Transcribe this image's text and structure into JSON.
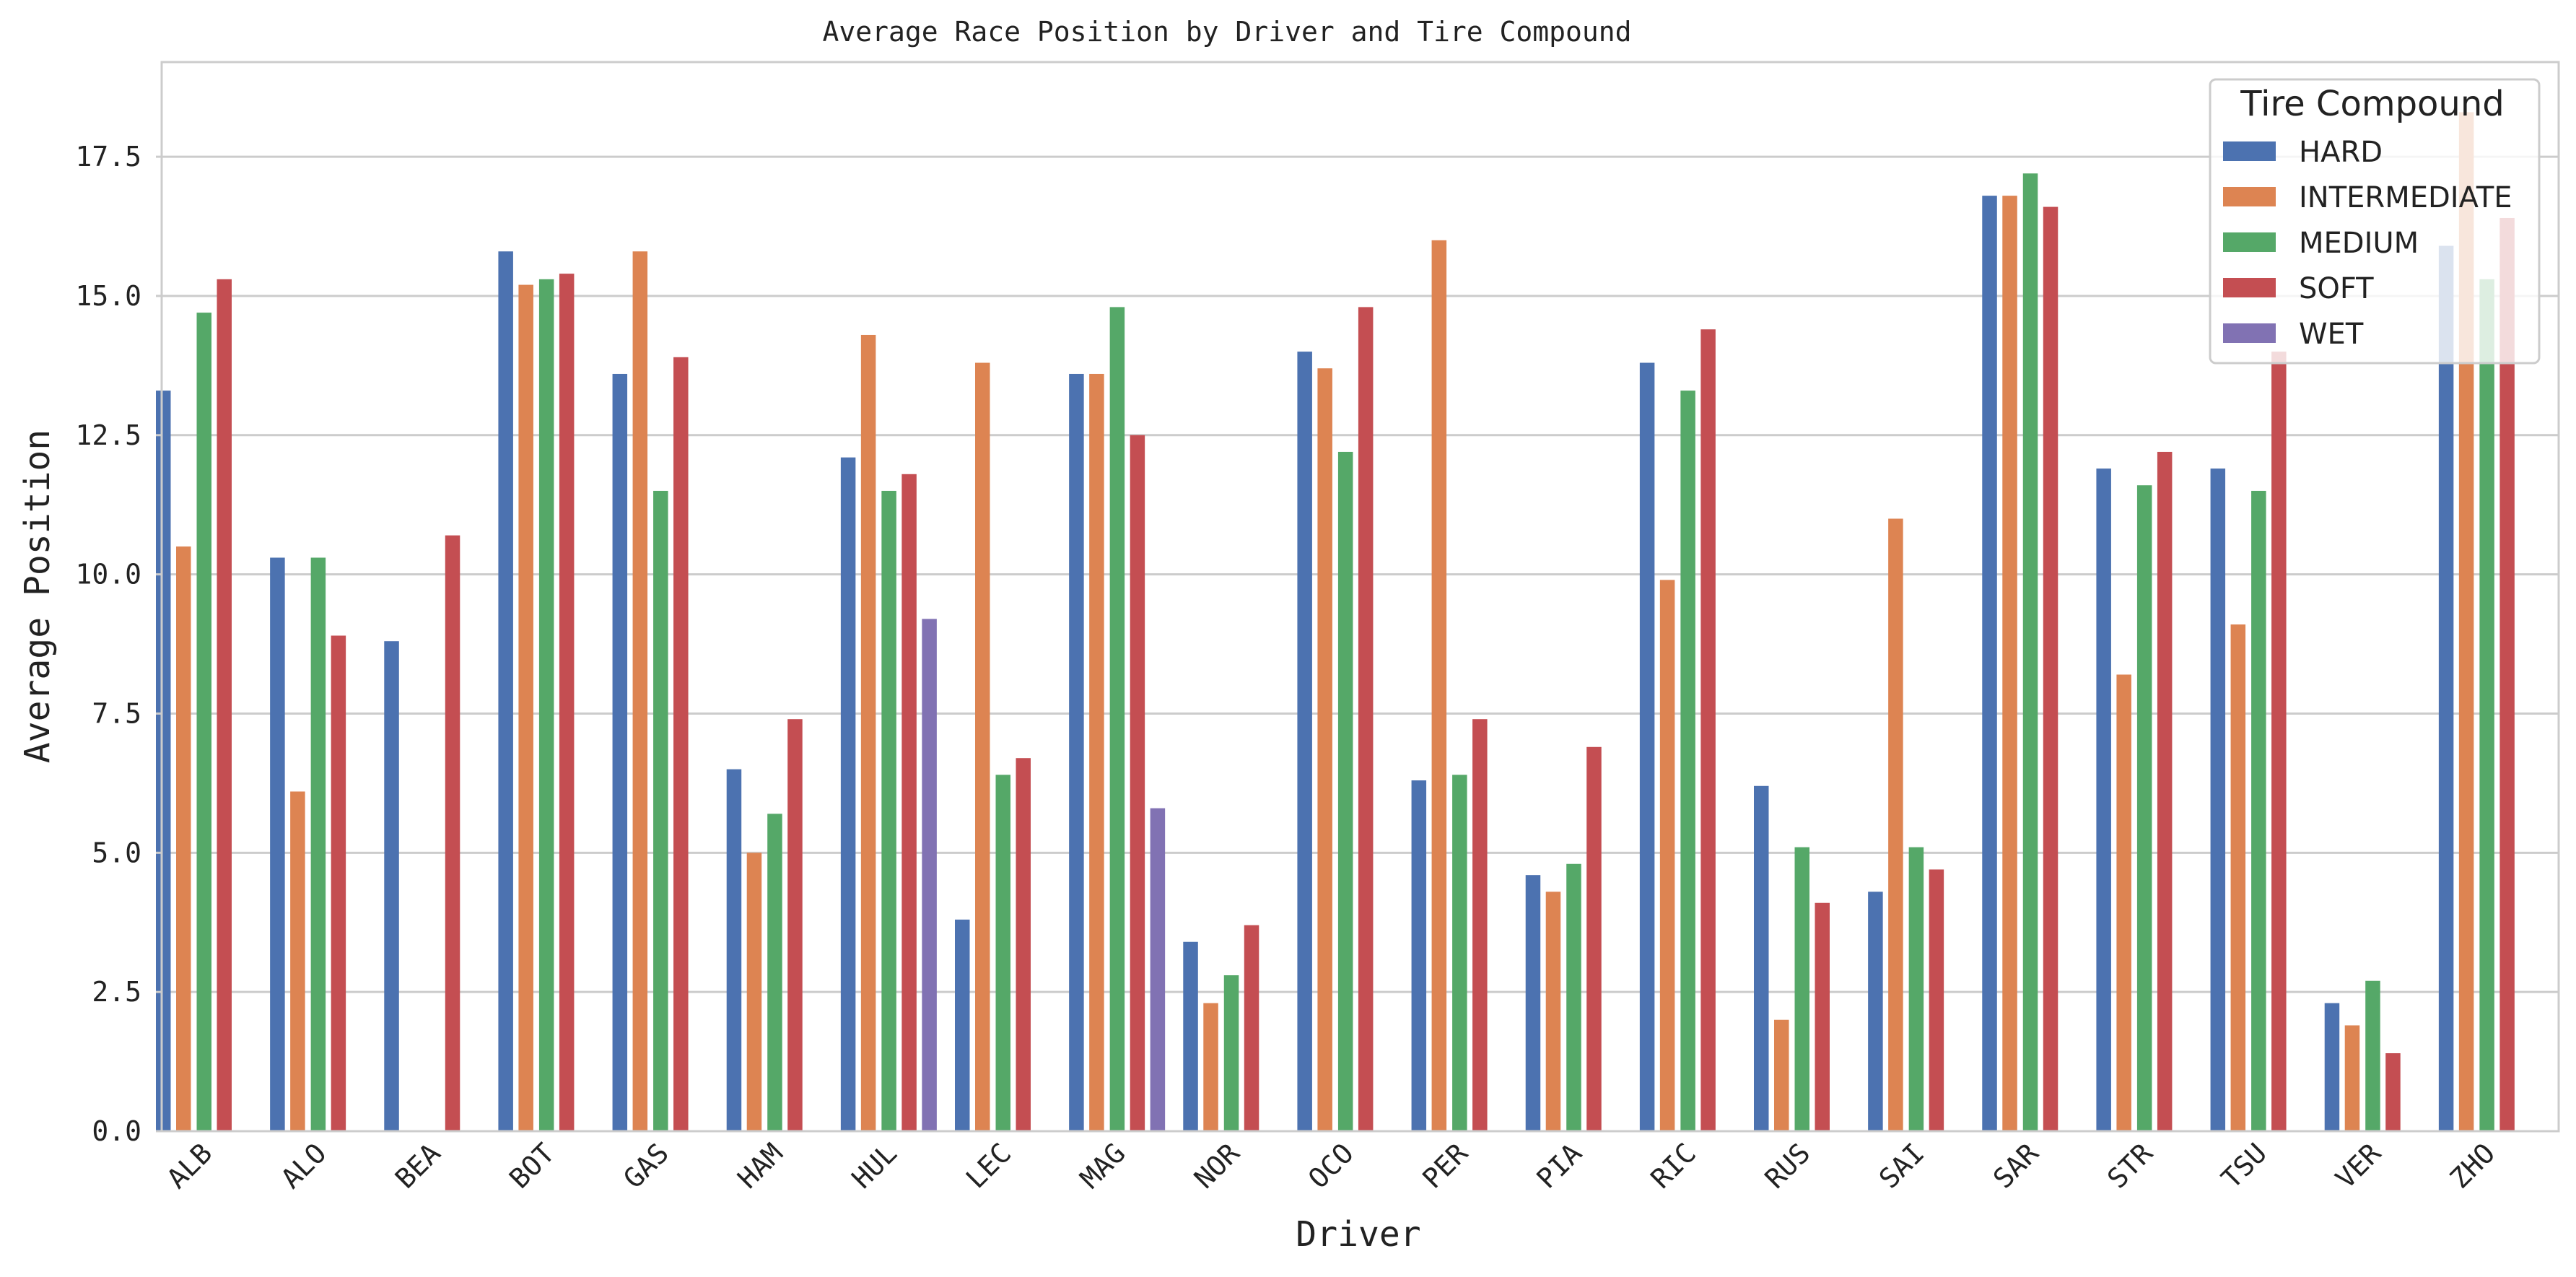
{
  "chart_data": {
    "type": "bar",
    "title": "Average Race Position by Driver and Tire Compound",
    "xlabel": "Driver",
    "ylabel": "Average Position",
    "ylim": [
      0,
      19.2
    ],
    "yticks": [
      "0.0",
      "2.5",
      "5.0",
      "7.5",
      "10.0",
      "12.5",
      "15.0",
      "17.5"
    ],
    "grid": "horizontal",
    "legend_title": "Tire Compound",
    "legend_position": "top-right",
    "categories": [
      "ALB",
      "ALO",
      "BEA",
      "BOT",
      "GAS",
      "HAM",
      "HUL",
      "LEC",
      "MAG",
      "NOR",
      "OCO",
      "PER",
      "PIA",
      "RIC",
      "RUS",
      "SAI",
      "SAR",
      "STR",
      "TSU",
      "VER",
      "ZHO"
    ],
    "series": [
      {
        "name": "HARD",
        "color": "#4c72b0",
        "values": [
          13.3,
          10.3,
          8.8,
          15.8,
          13.6,
          6.5,
          12.1,
          3.8,
          13.6,
          3.4,
          14.0,
          6.3,
          4.6,
          13.8,
          6.2,
          4.3,
          16.8,
          11.9,
          11.9,
          2.3,
          15.9
        ]
      },
      {
        "name": "INTERMEDIATE",
        "color": "#dd8452",
        "values": [
          10.5,
          6.1,
          null,
          15.2,
          15.8,
          5.0,
          14.3,
          13.8,
          13.6,
          2.3,
          13.7,
          16.0,
          4.3,
          9.9,
          2.0,
          11.0,
          16.8,
          8.2,
          9.1,
          1.9,
          18.3
        ]
      },
      {
        "name": "MEDIUM",
        "color": "#55a868",
        "values": [
          14.7,
          10.3,
          null,
          15.3,
          11.5,
          5.7,
          11.5,
          6.4,
          14.8,
          2.8,
          12.2,
          6.4,
          4.8,
          13.3,
          5.1,
          5.1,
          17.2,
          11.6,
          11.5,
          2.7,
          15.3
        ]
      },
      {
        "name": "SOFT",
        "color": "#c44e52",
        "values": [
          15.3,
          8.9,
          10.7,
          15.4,
          13.9,
          7.4,
          11.8,
          6.7,
          12.5,
          3.7,
          14.8,
          7.4,
          6.9,
          14.4,
          4.1,
          4.7,
          16.6,
          12.2,
          14.0,
          1.4,
          16.4
        ]
      },
      {
        "name": "WET",
        "color": "#8172b3",
        "values": [
          null,
          null,
          null,
          null,
          null,
          null,
          9.2,
          null,
          5.8,
          null,
          null,
          null,
          null,
          null,
          null,
          null,
          null,
          null,
          null,
          null,
          null
        ]
      }
    ]
  }
}
